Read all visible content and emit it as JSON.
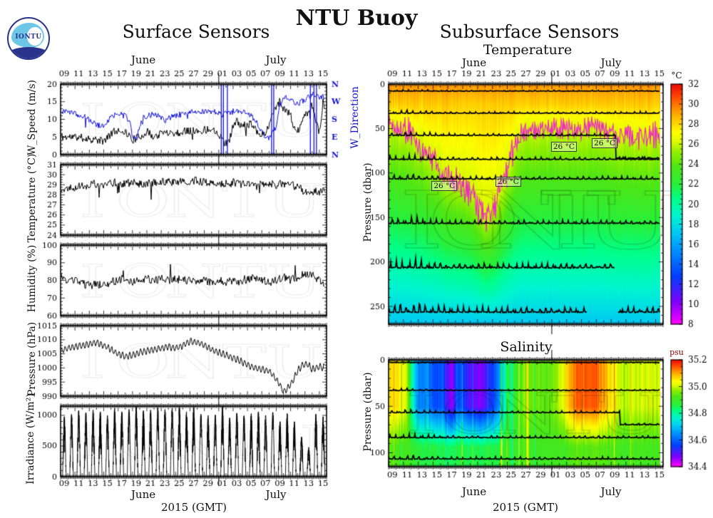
{
  "header": {
    "logo_text": "IONTU",
    "main_title": "NTU Buoy",
    "left_title": "Surface Sensors",
    "right_title": "Subsurface Sensors",
    "right_subtitle": "Temperature",
    "salinity_title": "Salinity",
    "watermark": "IONTU"
  },
  "footer": {
    "xlabel": "2015 (GMT)"
  },
  "axis": {
    "months": [
      "June",
      "July"
    ],
    "tick_labels": [
      "09",
      "11",
      "13",
      "15",
      "17",
      "19",
      "21",
      "23",
      "25",
      "27",
      "29",
      "01",
      "03",
      "05",
      "07",
      "09",
      "11",
      "13",
      "15"
    ],
    "tick_days": [
      0,
      2,
      4,
      6,
      8,
      10,
      12,
      14,
      16,
      18,
      20,
      22,
      24,
      26,
      28,
      30,
      32,
      34,
      36
    ],
    "span_days": 37,
    "month_boundary_day": 22,
    "year": "2015"
  },
  "chart_data": [
    {
      "id": "wind",
      "type": "line",
      "ylabel": "W_Speed (m/s)",
      "y2label": "W_Direction",
      "ylim": [
        0,
        20
      ],
      "ymajor": 5,
      "yminor": 1,
      "direction_labels": [
        "N",
        "E",
        "S",
        "W",
        "N"
      ],
      "series": [
        {
          "name": "wind_speed",
          "color": "#000000",
          "noise": 1.15,
          "spike_rate": 0.02,
          "spike_amp": -3,
          "x": [
            0,
            2,
            4,
            6,
            7,
            8,
            9,
            10,
            11,
            12,
            13,
            14,
            15,
            16,
            17,
            18,
            19,
            20,
            21,
            22,
            22.8,
            23.5,
            24,
            24.5,
            25,
            26,
            26.5,
            27,
            27.5,
            28,
            28.5,
            29,
            29.5,
            30,
            30.5,
            31,
            31.5,
            32,
            32.5,
            33,
            33.5,
            34,
            34.5,
            35,
            35.5,
            36,
            36.5,
            37
          ],
          "y": [
            5,
            5,
            4.5,
            3.8,
            6,
            7,
            6.5,
            4.2,
            5,
            6.5,
            5,
            6,
            6.5,
            6,
            6.5,
            7,
            6.5,
            7,
            7.5,
            6,
            3,
            4,
            8.5,
            9.5,
            8,
            8.5,
            9,
            8,
            6,
            5.5,
            6.5,
            8,
            12,
            14,
            15.5,
            13,
            12.5,
            11,
            7,
            6.5,
            9,
            11,
            12,
            14,
            10,
            6,
            15,
            8
          ]
        },
        {
          "name": "wind_direction",
          "color": "#1313dd",
          "noise": 0.85,
          "spike_rate": 0.008,
          "spike_amp": -4,
          "vspikes": [
            22.35,
            22.65,
            23.2,
            29.35,
            29.65,
            34.75,
            35.25,
            35.6
          ],
          "x": [
            0,
            1,
            2,
            3,
            4,
            5,
            6,
            6.5,
            7,
            8,
            9,
            9.5,
            10,
            10.5,
            11,
            11.5,
            12,
            13,
            14,
            14.5,
            15,
            16,
            17,
            18,
            19,
            20,
            21,
            22,
            22.5,
            23,
            24,
            25,
            26,
            26.5,
            27,
            27.5,
            28,
            28.5,
            29,
            29.5,
            30,
            30.5,
            31,
            31.5,
            32,
            33,
            34,
            35,
            36,
            37
          ],
          "y": [
            12,
            12.5,
            11.5,
            11,
            10,
            8.5,
            8,
            9.5,
            11,
            11.5,
            11,
            10,
            5.5,
            4,
            8,
            10.5,
            11,
            11.5,
            10.5,
            9.5,
            10.5,
            11,
            11.5,
            12,
            12.2,
            12,
            12.3,
            12,
            11,
            12,
            12.2,
            12,
            12,
            11,
            10,
            8,
            6.5,
            5,
            4.5,
            6,
            8,
            14,
            16,
            16.5,
            15.5,
            14.5,
            15.5,
            17,
            16.5,
            16.5
          ]
        }
      ]
    },
    {
      "id": "air-temperature",
      "type": "line",
      "ylabel": "Temperature (°C)",
      "ylim": [
        24,
        31
      ],
      "ymajor": 1,
      "yminor": 0.25,
      "series": [
        {
          "name": "sea_surface_temperature",
          "color": "#000000",
          "noise": 0.42,
          "spike_rate": 0.035,
          "spike_amp": -2.4,
          "x": [
            0,
            1,
            2,
            3,
            4,
            5,
            6,
            7,
            8,
            9,
            10,
            11,
            12,
            13,
            14,
            15,
            16,
            17,
            18,
            19,
            20,
            21,
            22,
            23,
            24,
            25,
            26,
            27,
            28,
            29,
            30,
            31,
            32,
            33,
            34,
            35,
            36,
            37
          ],
          "y": [
            28.5,
            28.7,
            28.8,
            28.9,
            29.0,
            29.1,
            29.0,
            29.2,
            29.2,
            29.1,
            29.2,
            29.1,
            29.2,
            29.2,
            29.3,
            29.3,
            29.2,
            29.4,
            29.3,
            29.4,
            29.3,
            29.2,
            29.2,
            29.1,
            29.2,
            29.1,
            29.1,
            29.0,
            29.1,
            29.0,
            29.0,
            29.1,
            29.0,
            28.8,
            28.3,
            28.4,
            28.3,
            28.4
          ]
        }
      ]
    },
    {
      "id": "humidity",
      "type": "line",
      "ylabel": "Humidity (%)",
      "ylim": [
        60,
        100
      ],
      "ymajor": 10,
      "yminor": 2,
      "series": [
        {
          "name": "relative_humidity",
          "color": "#000000",
          "noise": 2.3,
          "spike_rate": 0.03,
          "spike_amp": 7,
          "x": [
            0,
            1,
            2,
            3,
            4,
            5,
            6,
            7,
            8,
            9,
            10,
            11,
            12,
            13,
            14,
            15,
            16,
            17,
            18,
            19,
            20,
            21,
            22,
            23,
            24,
            25,
            26,
            27,
            28,
            29,
            30,
            31,
            32,
            33,
            34,
            35,
            36,
            37
          ],
          "y": [
            80,
            80,
            80,
            78,
            77,
            78,
            77,
            79,
            80,
            80,
            79,
            80,
            81,
            80,
            81,
            80,
            81,
            80,
            80,
            79,
            80,
            79,
            80,
            79,
            80,
            78,
            80,
            82,
            80,
            79,
            80,
            82,
            80,
            82,
            84,
            83,
            80,
            76
          ]
        }
      ]
    },
    {
      "id": "air-pressure",
      "type": "line",
      "ylabel": "Pressure (hPa)",
      "ylim": [
        990,
        1015
      ],
      "ymajor": 5,
      "yminor": 1,
      "series": [
        {
          "name": "air_pressure",
          "color": "#000000",
          "noise": 0.25,
          "tide_amp": 1.15,
          "spike_rate": 0,
          "spike_amp": 0,
          "x": [
            0,
            1,
            2,
            3,
            4,
            5,
            6,
            7,
            8,
            9,
            10,
            11,
            12,
            13,
            14,
            15,
            16,
            17,
            18,
            19,
            20,
            21,
            22,
            23,
            24,
            25,
            26,
            27,
            28,
            29,
            30,
            30.5,
            31,
            31.5,
            32,
            33,
            33.5,
            34,
            34.5,
            35,
            35.5,
            36,
            36.5,
            37
          ],
          "y": [
            1006,
            1007,
            1007.5,
            1008,
            1008.5,
            1009,
            1008,
            1006.5,
            1005,
            1004,
            1004.5,
            1005.5,
            1006,
            1006.5,
            1007,
            1007.5,
            1007,
            1008,
            1009.5,
            1009,
            1008,
            1006.5,
            1005.5,
            1004.5,
            1003.5,
            1002.5,
            1001,
            1000,
            999.5,
            999,
            996,
            994,
            991.5,
            992.5,
            994,
            999,
            1000.5,
            1001.5,
            1001,
            999.5,
            999.8,
            1000.5,
            1000,
            1001
          ]
        }
      ]
    },
    {
      "id": "irradiance",
      "type": "daily-peaks",
      "ylabel": "Irradiance (W/m²)",
      "ylim": [
        0,
        1150
      ],
      "ymajor": 500,
      "yminor": 100,
      "day_peaks": [
        980,
        1020,
        1080,
        1050,
        1090,
        1060,
        1000,
        1120,
        1060,
        1100,
        1140,
        1080,
        1090,
        1130,
        1100,
        1120,
        1140,
        1060,
        1150,
        1020,
        1000,
        1010,
        1140,
        960,
        1040,
        1000,
        1030,
        1060,
        1000,
        1050,
        900,
        1030,
        900,
        650,
        480,
        1020,
        980
      ]
    },
    {
      "id": "subsurface-temperature",
      "type": "heatmap",
      "title": "Temperature",
      "ylabel": "Pressure (dbar)",
      "ylim": [
        0,
        270
      ],
      "ymajor": 50,
      "yminor": 10,
      "colorbar": {
        "unit": "°C",
        "min": 8,
        "max": 32,
        "tick_step": 2,
        "minor_step": 0.5
      },
      "surface_temp": 29.35,
      "mixed_layer_depth": 22,
      "mixed_layer_bottom_temp": 28.25,
      "deep_temp_at_270": 17.2,
      "isotherm26": {
        "x": [
          0,
          1,
          2,
          3,
          4,
          5,
          6,
          7,
          8,
          9,
          10,
          11,
          12,
          12.5,
          13,
          13.5,
          14,
          14.5,
          15,
          15.5,
          16,
          16.5,
          17,
          17.5,
          18,
          19,
          20,
          21,
          22,
          23,
          24,
          25,
          26,
          27,
          28,
          29,
          30,
          30.5,
          31,
          32,
          33,
          34,
          35,
          36,
          37
        ],
        "y": [
          45,
          50,
          52,
          58,
          68,
          75,
          85,
          95,
          105,
          110,
          115,
          122,
          138,
          146,
          152,
          150,
          143,
          135,
          122,
          110,
          96,
          82,
          70,
          62,
          55,
          50,
          52,
          50,
          50,
          52,
          50,
          50,
          52,
          50,
          48,
          50,
          55,
          58,
          62,
          56,
          60,
          58,
          61,
          58,
          60
        ],
        "color": "#ee22cc"
      },
      "sensors": [
        {
          "depth": 8,
          "amp": 1.2
        },
        {
          "depth": 33,
          "amp": 2.5
        },
        {
          "depth": 58,
          "amp": 3,
          "step_day": 30.6,
          "step_to": 84
        },
        {
          "depth": 85,
          "amp": 3.5
        },
        {
          "depth": 107,
          "amp": 4
        },
        {
          "depth": 157,
          "amp": 5
        },
        {
          "depth": 207,
          "amp": 7,
          "end_day": 30.5
        },
        {
          "depth": 257,
          "amp": 8,
          "gap": [
            26.8,
            30.9
          ]
        }
      ],
      "annotations": [
        {
          "label": "26 °C",
          "day": 5.8,
          "depth": 112
        },
        {
          "label": "26 °C",
          "day": 14.4,
          "depth": 107
        },
        {
          "label": "26 °C",
          "day": 21.9,
          "depth": 68
        },
        {
          "label": "26 °C",
          "day": 27.4,
          "depth": 64
        }
      ]
    },
    {
      "id": "salinity",
      "type": "heatmap",
      "title": "Salinity",
      "ylabel": "Pressure (dbar)",
      "ylim": [
        0,
        115
      ],
      "ymajor": 50,
      "yminor": 10,
      "colorbar": {
        "unit": "psu",
        "min": 34.4,
        "max": 35.2,
        "tick_step": 0.2,
        "minor_step": 0.05
      },
      "background_salinity": 34.9,
      "surface_salinity": {
        "x": [
          0,
          1,
          2,
          2.5,
          3,
          3.5,
          4,
          5,
          6,
          7,
          8,
          8.5,
          9,
          10,
          11,
          12,
          13,
          14,
          15,
          16,
          17,
          18,
          19,
          20,
          21,
          22,
          23,
          24,
          25,
          26,
          27,
          28,
          29,
          30,
          31,
          32,
          33,
          34,
          35,
          36,
          37
        ],
        "y": [
          35.05,
          35.06,
          35.04,
          34.95,
          34.8,
          34.7,
          34.62,
          34.66,
          34.56,
          34.6,
          34.5,
          34.45,
          34.58,
          34.55,
          34.5,
          34.46,
          34.5,
          34.56,
          34.68,
          34.85,
          34.9,
          34.94,
          34.95,
          34.95,
          34.93,
          34.95,
          35.0,
          35.08,
          35.13,
          35.15,
          35.15,
          35.14,
          35.1,
          35.05,
          35.0,
          35.0,
          35.0,
          35.0,
          35.02,
          35.0,
          35.0
        ]
      },
      "sensors": [
        {
          "depth": 3,
          "amp": 0.8
        },
        {
          "depth": 33,
          "amp": 1.5
        },
        {
          "depth": 57,
          "amp": 2.5,
          "step_day": 31.2,
          "step_to": 70
        },
        {
          "depth": 84,
          "amp": 3
        },
        {
          "depth": 107,
          "amp": 3
        }
      ]
    }
  ]
}
